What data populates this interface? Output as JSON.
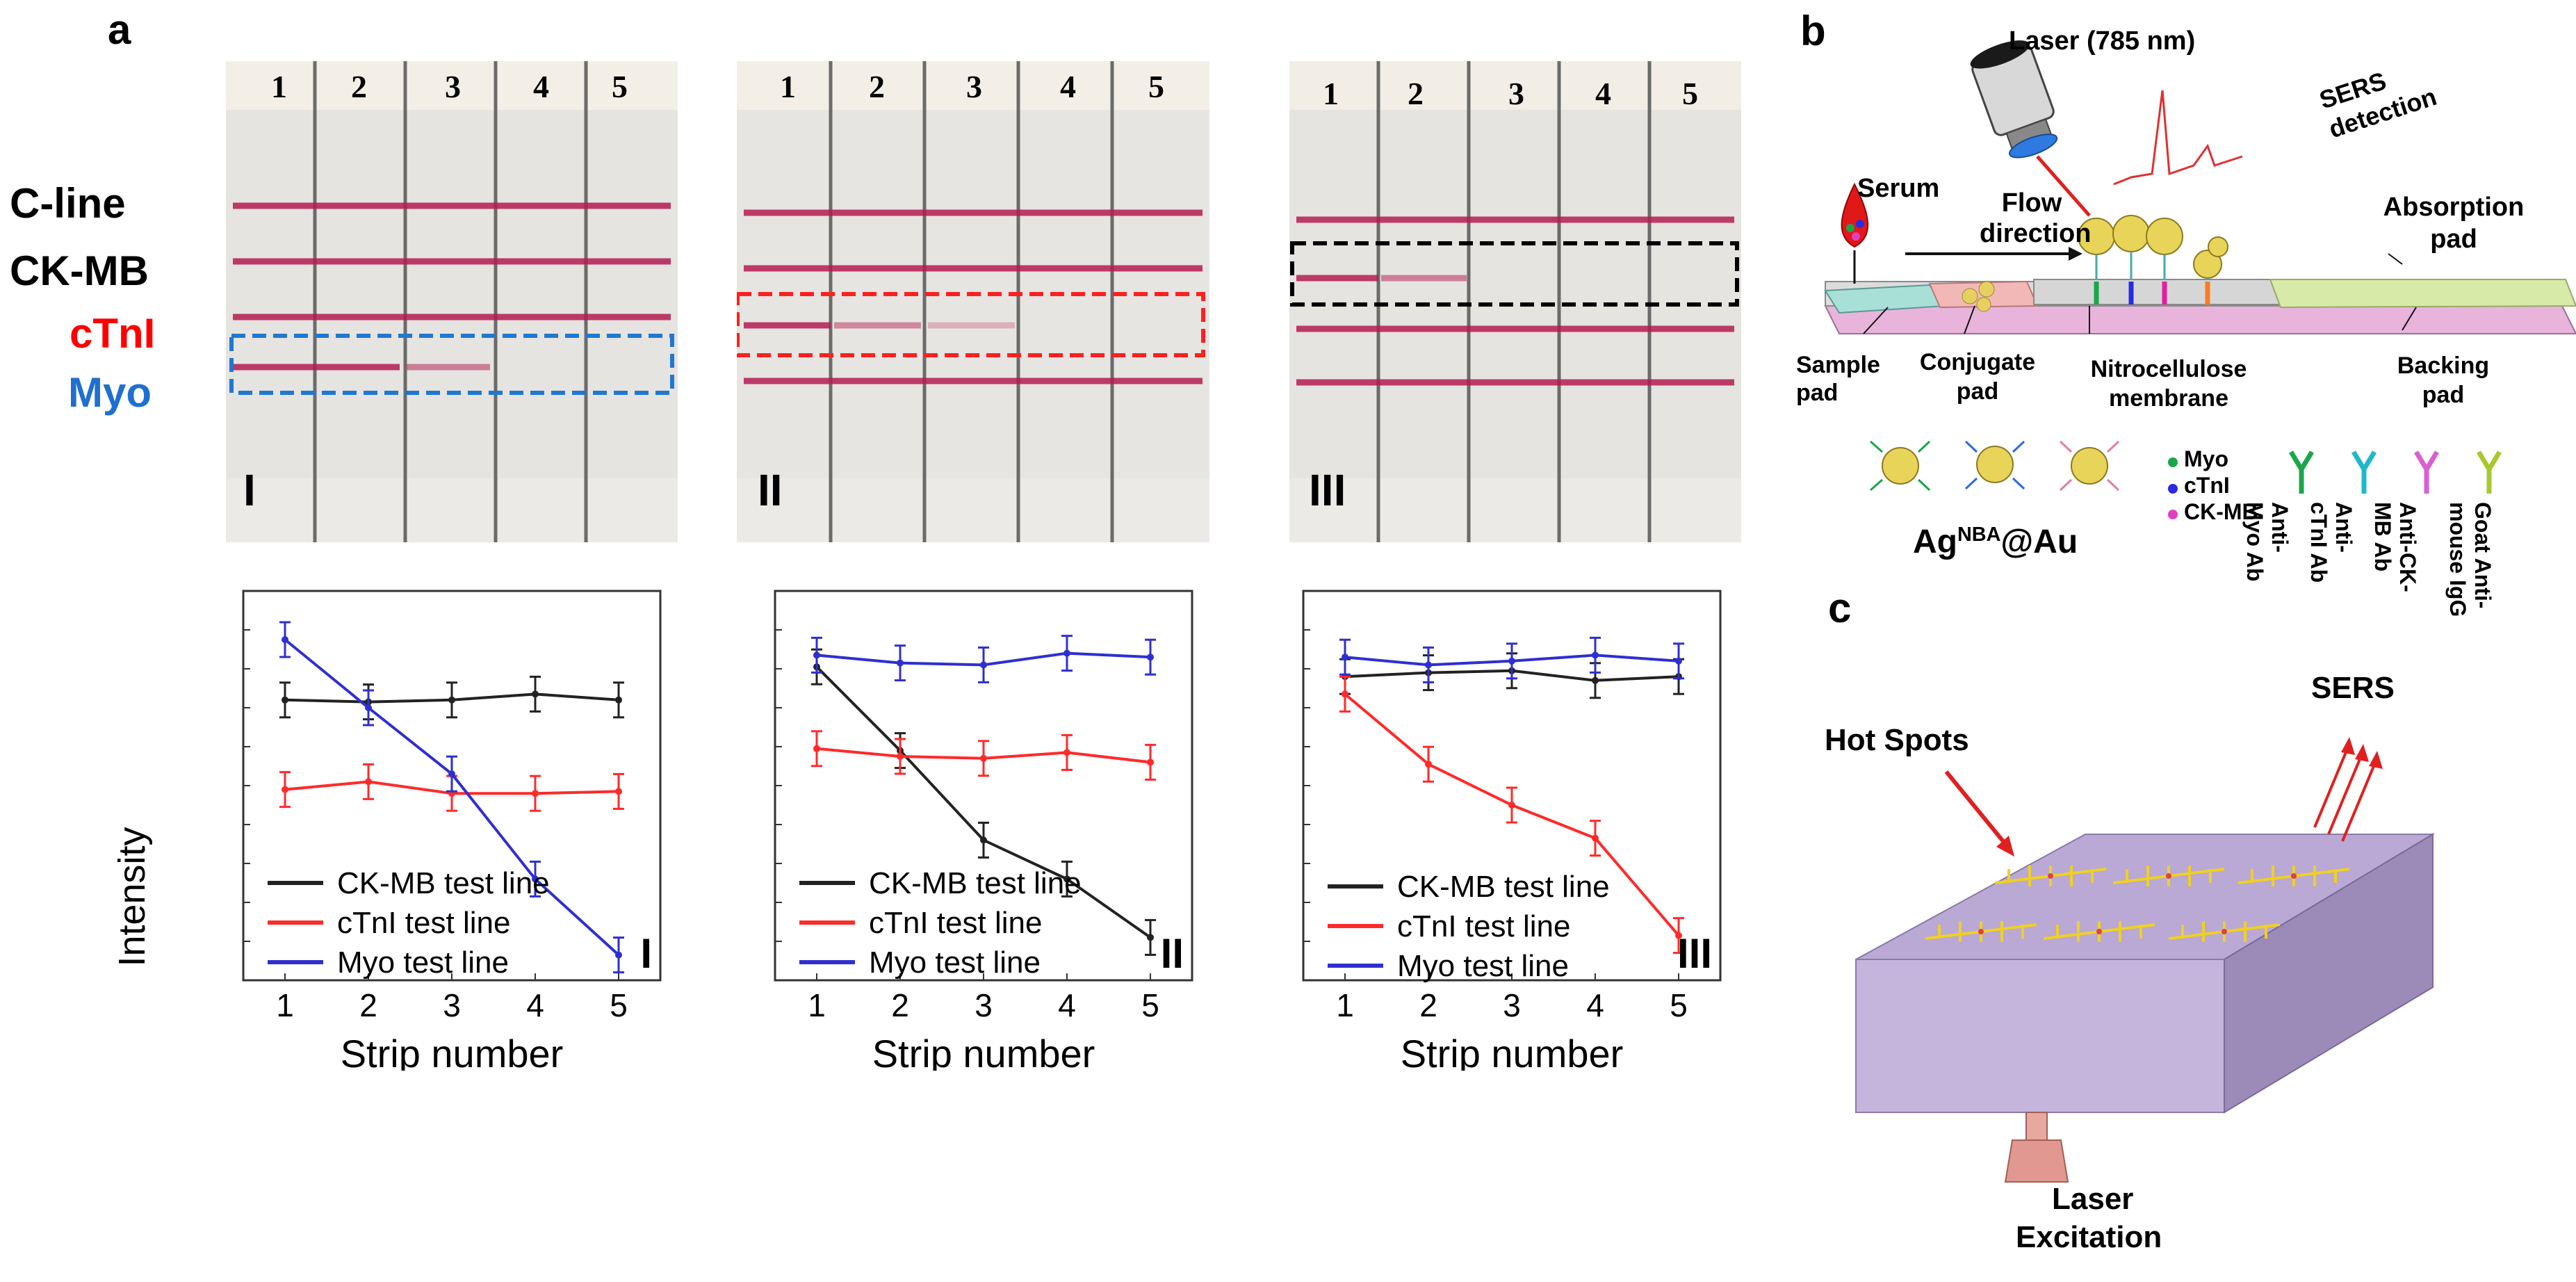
{
  "panel_labels": {
    "a": "a",
    "b": "b",
    "c": "c"
  },
  "strip_legend": [
    {
      "label": "C-line",
      "color": "#000000"
    },
    {
      "label": "CK-MB",
      "color": "#000000"
    },
    {
      "label": "cTnI",
      "color": "#ff0000"
    },
    {
      "label": "Myo",
      "color": "#1f6fd0"
    }
  ],
  "strip_photos": [
    {
      "roman": "I",
      "numbers": [
        "1",
        "2",
        "3",
        "4",
        "5"
      ],
      "box_color": "#1f78d1"
    },
    {
      "roman": "II",
      "numbers": [
        "1",
        "2",
        "3",
        "4",
        "5"
      ],
      "box_color": "#ff2020"
    },
    {
      "roman": "III",
      "numbers": [
        "1",
        "2",
        "3",
        "4",
        "5"
      ],
      "box_color": "#000000"
    }
  ],
  "colors": {
    "ckmb": "#222222",
    "ctni": "#ff2a2a",
    "myo": "#2f2fd0"
  },
  "chart_data": [
    {
      "type": "line",
      "panel": "I",
      "xlabel": "Strip number",
      "ylabel": "Intensity",
      "x": [
        1,
        2,
        3,
        4,
        5
      ],
      "xlim": [
        0.5,
        5.5
      ],
      "ylim": [
        0,
        10
      ],
      "series": [
        {
          "name": "CK-MB test line",
          "values": [
            7.2,
            7.15,
            7.2,
            7.35,
            7.2
          ]
        },
        {
          "name": "cTnI test line",
          "values": [
            4.9,
            5.1,
            4.8,
            4.8,
            4.85
          ]
        },
        {
          "name": "Myo test line",
          "values": [
            8.75,
            7.0,
            5.3,
            2.6,
            0.65
          ]
        }
      ],
      "legend": [
        "CK-MB test line",
        "cTnI test line",
        "Myo test line"
      ],
      "roman": "I"
    },
    {
      "type": "line",
      "panel": "II",
      "xlabel": "Strip number",
      "ylabel": "",
      "x": [
        1,
        2,
        3,
        4,
        5
      ],
      "xlim": [
        0.5,
        5.5
      ],
      "ylim": [
        0,
        10
      ],
      "series": [
        {
          "name": "CK-MB test line",
          "values": [
            8.05,
            5.9,
            3.6,
            2.6,
            1.1
          ]
        },
        {
          "name": "cTnI test line",
          "values": [
            5.95,
            5.75,
            5.7,
            5.85,
            5.6
          ]
        },
        {
          "name": "Myo test line",
          "values": [
            8.35,
            8.15,
            8.1,
            8.4,
            8.3
          ]
        }
      ],
      "legend": [
        "CK-MB test line",
        "cTnI test line",
        "Myo test line"
      ],
      "roman": "II"
    },
    {
      "type": "line",
      "panel": "III",
      "xlabel": "Strip number",
      "ylabel": "",
      "x": [
        1,
        2,
        3,
        4,
        5
      ],
      "xlim": [
        0.5,
        5.5
      ],
      "ylim": [
        0,
        10
      ],
      "series": [
        {
          "name": "CK-MB test line",
          "values": [
            7.8,
            7.9,
            7.95,
            7.7,
            7.8
          ]
        },
        {
          "name": "cTnI test line",
          "values": [
            7.35,
            5.55,
            4.5,
            3.65,
            1.15
          ]
        },
        {
          "name": "Myo test line",
          "values": [
            8.3,
            8.1,
            8.2,
            8.35,
            8.2
          ]
        }
      ],
      "legend": [
        "CK-MB test line",
        "cTnI test line",
        "Myo test line"
      ],
      "roman": "III"
    }
  ],
  "panel_b": {
    "laser": "Laser (785 nm)",
    "sers_detection": "SERS detection",
    "serum": "Serum",
    "flow_direction": "Flow direction",
    "absorption_pad": "Absorption pad",
    "sample_pad": "Sample pad",
    "conjugate_pad": "Conjugate pad",
    "nitrocellulose_membrane": "Nitrocellulose membrane",
    "backing_pad": "Backing pad",
    "nanoparticle_label_main": "Ag",
    "nanoparticle_label_sup": "NBA",
    "nanoparticle_label_tail": "@Au",
    "antigens": [
      {
        "label": "Myo",
        "color": "#1aa64a"
      },
      {
        "label": "cTnI",
        "color": "#2a2ae0"
      },
      {
        "label": "CK-MB",
        "color": "#e040c0"
      }
    ],
    "antibodies": [
      {
        "label": "Anti-Myo Ab",
        "color": "#1aa64a"
      },
      {
        "label": "Anti-cTnI Ab",
        "color": "#20b8c8"
      },
      {
        "label": "Anti-CK-MB Ab",
        "color": "#d860d0"
      },
      {
        "label": "Goat Anti-mouse IgG",
        "color": "#a8c830"
      }
    ]
  },
  "panel_c": {
    "hot_spots": "Hot Spots",
    "sers": "SERS",
    "laser_excitation_1": "Laser",
    "laser_excitation_2": "Excitation"
  }
}
